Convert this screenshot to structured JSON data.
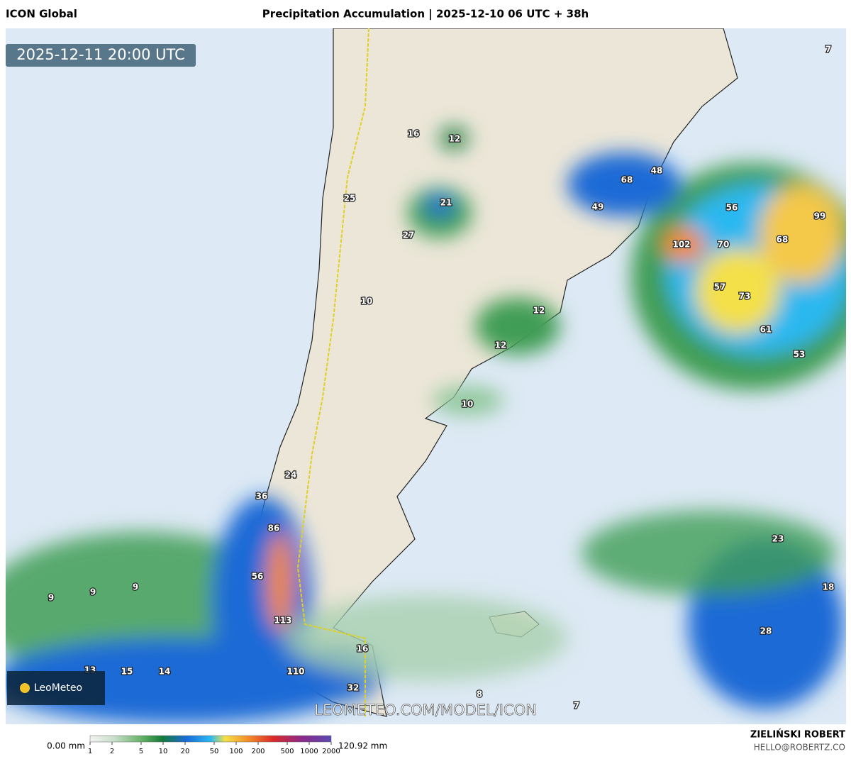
{
  "header": {
    "left": "ICON Global",
    "title": "Precipitation Accumulation | 2025-12-10 06 UTC + 38h"
  },
  "map": {
    "valid_time": "2025-12-11 20:00 UTC",
    "labels": [
      7,
      16,
      12,
      68,
      48,
      25,
      21,
      49,
      56,
      99,
      27,
      102,
      70,
      68,
      57,
      73,
      10,
      12,
      61,
      12,
      53,
      10,
      24,
      36,
      86,
      23,
      56,
      9,
      18,
      9,
      9,
      113,
      28,
      16,
      13,
      15,
      14,
      110,
      32,
      8,
      7
    ],
    "watermark": "LEOMETEO.COM/MODEL/ICON",
    "logo": "LeoMeteo"
  },
  "colorbar": {
    "min_label": "0.00 mm",
    "max_label": "120.92 mm",
    "lim": [
      1,
      2000
    ],
    "log": true,
    "ticks": [
      1,
      2,
      5,
      10,
      20,
      50,
      100,
      200,
      500,
      1000,
      2000
    ]
  },
  "footer": {
    "author": "ZIELIŃSKI ROBERT",
    "email": "HELLO@ROBERTZ.CO"
  }
}
